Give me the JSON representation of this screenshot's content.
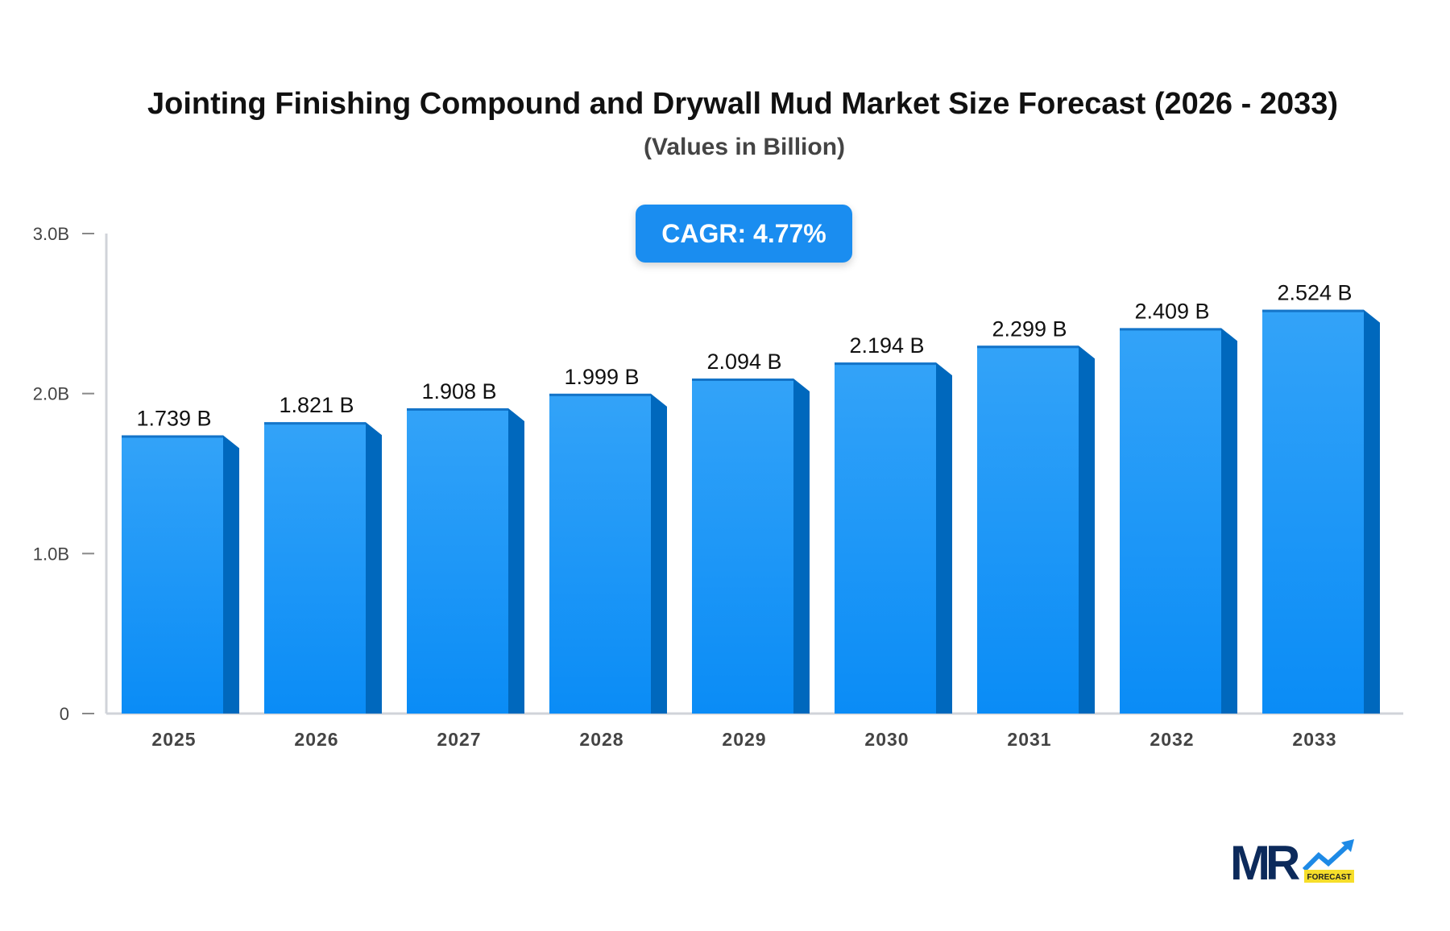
{
  "chart_data": {
    "type": "bar",
    "title": "Jointing Finishing Compound and Drywall Mud Market Size Forecast (2026 - 2033)",
    "subtitle": "(Values in Billion)",
    "categories": [
      "2025",
      "2026",
      "2027",
      "2028",
      "2029",
      "2030",
      "2031",
      "2032",
      "2033"
    ],
    "values": [
      1.739,
      1.821,
      1.908,
      1.999,
      2.094,
      2.194,
      2.299,
      2.409,
      2.524
    ],
    "data_labels": [
      "1.739 B",
      "1.821 B",
      "1.908 B",
      "1.999 B",
      "2.094 B",
      "2.194 B",
      "2.299 B",
      "2.409 B",
      "2.524 B"
    ],
    "yticks": [
      0,
      1,
      2,
      3
    ],
    "ytick_labels": [
      "0",
      "1.0B",
      "2.0B",
      "3.0B"
    ],
    "ylim": [
      0,
      3
    ],
    "grid": false,
    "colors": {
      "bar_front": "#1e96f5",
      "bar_top": "#35a5f9",
      "bar_side": "#0068bd",
      "axis": "#d0d3d9"
    }
  },
  "cagr_label": "CAGR: 4.77%",
  "logo": {
    "text": "MR",
    "badge": "FORECAST",
    "colors": {
      "mr": "#0c2a5b",
      "arrow": "#1e8ae6",
      "badge": "#f6de2a"
    }
  }
}
